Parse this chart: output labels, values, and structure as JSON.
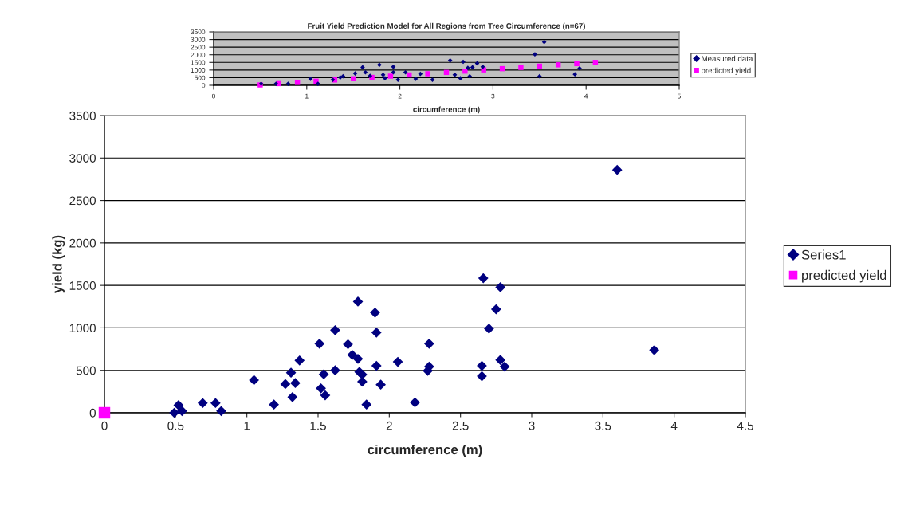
{
  "chart_data": [
    {
      "type": "scatter",
      "title": "Fruit Yield Prediction Model for All Regions from Tree Circumference (n=67)",
      "xlabel": "circumference (m)",
      "xlim": [
        0,
        5
      ],
      "xticks": [
        0,
        1,
        2,
        3,
        4,
        5
      ],
      "ylim": [
        0,
        3500
      ],
      "yticks": [
        0,
        500,
        1000,
        1500,
        2000,
        2500,
        3000,
        3500
      ],
      "grid": "y",
      "legend": "right",
      "series": [
        {
          "name": "Measured data",
          "color": "#000080",
          "marker": "diamond",
          "x": [
            0.51,
            0.67,
            0.8,
            1.04,
            1.12,
            1.28,
            1.36,
            1.39,
            1.52,
            1.6,
            1.63,
            1.68,
            1.78,
            1.82,
            1.84,
            1.93,
            1.93,
            1.98,
            2.06,
            2.17,
            2.22,
            2.35,
            2.54,
            2.59,
            2.65,
            2.68,
            2.73,
            2.78,
            2.83,
            2.89,
            2.75,
            3.45,
            3.55,
            3.5,
            3.88,
            3.93
          ],
          "values": [
            100,
            100,
            100,
            420,
            100,
            360,
            520,
            590,
            780,
            1180,
            850,
            620,
            1340,
            690,
            460,
            1210,
            850,
            360,
            850,
            420,
            750,
            360,
            1630,
            690,
            460,
            1540,
            1140,
            1180,
            1440,
            1210,
            590,
            2030,
            2840,
            590,
            720,
            1110
          ]
        },
        {
          "name": "predicted yield",
          "color": "#ff00ff",
          "marker": "square",
          "x": [
            0.5,
            0.7,
            0.9,
            1.1,
            1.3,
            1.5,
            1.7,
            1.9,
            2.1,
            2.3,
            2.5,
            2.7,
            2.9,
            3.1,
            3.3,
            3.5,
            3.7,
            3.9,
            4.1
          ],
          "values": [
            25,
            110,
            190,
            270,
            350,
            430,
            520,
            600,
            680,
            760,
            845,
            930,
            1010,
            1090,
            1170,
            1255,
            1340,
            1420,
            1500
          ]
        }
      ]
    },
    {
      "type": "scatter",
      "xlabel": "circumference (m)",
      "ylabel": "yield (kg)",
      "xlim": [
        0,
        4.5
      ],
      "xticks": [
        0,
        0.5,
        1,
        1.5,
        2,
        2.5,
        3,
        3.5,
        4,
        4.5
      ],
      "ylim": [
        0,
        3500
      ],
      "yticks": [
        0,
        500,
        1000,
        1500,
        2000,
        2500,
        3000,
        3500
      ],
      "grid": "y",
      "legend": "right",
      "series": [
        {
          "name": "Series1",
          "color": "#000080",
          "marker": "diamond",
          "x": [
            0.49,
            0.52,
            0.545,
            0.69,
            0.78,
            0.82,
            1.05,
            1.19,
            1.27,
            1.31,
            1.34,
            1.32,
            1.37,
            1.51,
            1.52,
            1.55,
            1.54,
            1.62,
            1.62,
            1.71,
            1.74,
            1.78,
            1.78,
            1.79,
            1.81,
            1.81,
            1.84,
            1.9,
            1.91,
            1.91,
            1.94,
            2.06,
            2.18,
            2.28,
            2.28,
            2.27,
            2.66,
            2.78,
            2.75,
            2.7,
            2.65,
            2.65,
            2.78,
            2.81,
            3.6,
            3.86
          ],
          "values": [
            0,
            90,
            20,
            115,
            115,
            20,
            385,
            97,
            338,
            472,
            350,
            185,
            616,
            813,
            288,
            206,
            453,
            973,
            500,
            807,
            682,
            635,
            1310,
            481,
            450,
            366,
            97,
            1179,
            945,
            553,
            331,
            600,
            122,
            813,
            544,
            494,
            1585,
            1479,
            1219,
            991,
            553,
            431,
            622,
            544,
            2860,
            738
          ]
        },
        {
          "name": "predicted yield",
          "color": "#ff00ff",
          "marker": "square",
          "x": [
            0
          ],
          "values": [
            0
          ]
        }
      ]
    }
  ]
}
